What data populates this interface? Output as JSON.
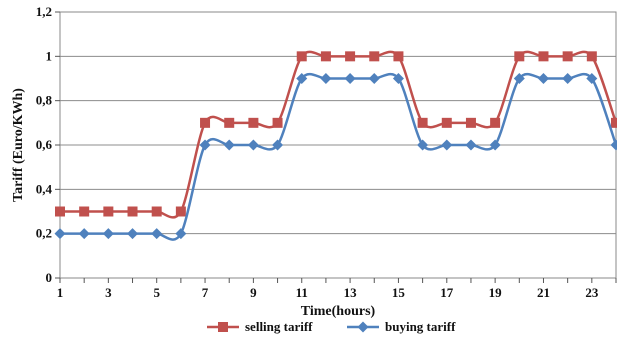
{
  "chart_data": {
    "type": "line",
    "title": "",
    "xlabel": "Time(hours)",
    "ylabel": "Tariff (Euro/KWh)",
    "x": [
      1,
      2,
      3,
      4,
      5,
      6,
      7,
      8,
      9,
      10,
      11,
      12,
      13,
      14,
      15,
      16,
      17,
      18,
      19,
      20,
      21,
      22,
      23,
      24
    ],
    "xlim": [
      1,
      24
    ],
    "ylim": [
      0,
      1.2
    ],
    "x_ticks": [
      1,
      3,
      5,
      7,
      9,
      11,
      13,
      15,
      17,
      19,
      21,
      23
    ],
    "x_tick_labels": [
      "1",
      "3",
      "5",
      "7",
      "9",
      "11",
      "13",
      "15",
      "17",
      "19",
      "21",
      "23"
    ],
    "y_ticks": [
      0,
      0.2,
      0.4,
      0.6,
      0.8,
      1,
      1.2
    ],
    "y_tick_labels": [
      "0",
      "0,2",
      "0,4",
      "0,6",
      "0,8",
      "1",
      "1,2"
    ],
    "grid": "horizontal",
    "legend_position": "bottom",
    "series": [
      {
        "name": "selling tariff",
        "color": "#C0504D",
        "marker": "square",
        "values": [
          0.3,
          0.3,
          0.3,
          0.3,
          0.3,
          0.3,
          0.7,
          0.7,
          0.7,
          0.7,
          1,
          1,
          1,
          1,
          1,
          0.7,
          0.7,
          0.7,
          0.7,
          1,
          1,
          1,
          1,
          0.7
        ]
      },
      {
        "name": "buying tariff",
        "color": "#4F81BD",
        "marker": "diamond",
        "values": [
          0.2,
          0.2,
          0.2,
          0.2,
          0.2,
          0.2,
          0.6,
          0.6,
          0.6,
          0.6,
          0.9,
          0.9,
          0.9,
          0.9,
          0.9,
          0.6,
          0.6,
          0.6,
          0.6,
          0.9,
          0.9,
          0.9,
          0.9,
          0.6
        ]
      }
    ]
  }
}
